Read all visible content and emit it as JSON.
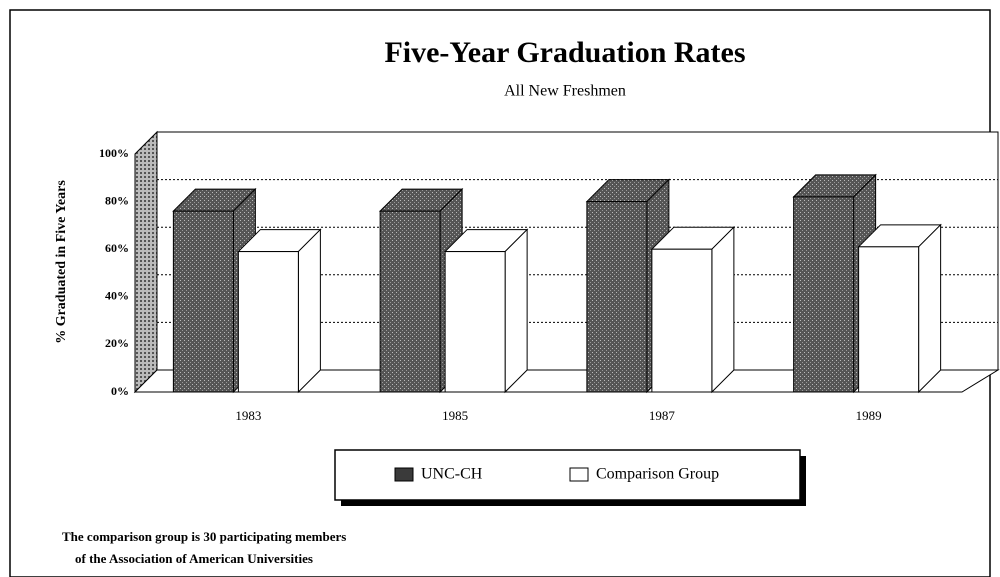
{
  "chart_data": {
    "type": "bar3d",
    "title": "Five-Year Graduation Rates",
    "subtitle": "All New Freshmen",
    "y_label": "% Graduated in Five Years",
    "categories": [
      "1983",
      "1985",
      "1987",
      "1989"
    ],
    "series": [
      {
        "name": "UNC-CH",
        "color": "#3a3a3a",
        "values": [
          76,
          76,
          80,
          82
        ]
      },
      {
        "name": "Comparison Group",
        "color": "#ffffff",
        "values": [
          59,
          59,
          60,
          61
        ]
      }
    ],
    "ylim": [
      0,
      100
    ],
    "yticks": [
      {
        "value": 0,
        "label": "0%"
      },
      {
        "value": 20,
        "label": "20%"
      },
      {
        "value": 40,
        "label": "40%"
      },
      {
        "value": 60,
        "label": "60%"
      },
      {
        "value": 80,
        "label": "80%"
      },
      {
        "value": 100,
        "label": "100%"
      }
    ],
    "grid": true,
    "footnote": [
      "The comparison group is 30 participating members",
      "of the Association of American Universities"
    ]
  }
}
